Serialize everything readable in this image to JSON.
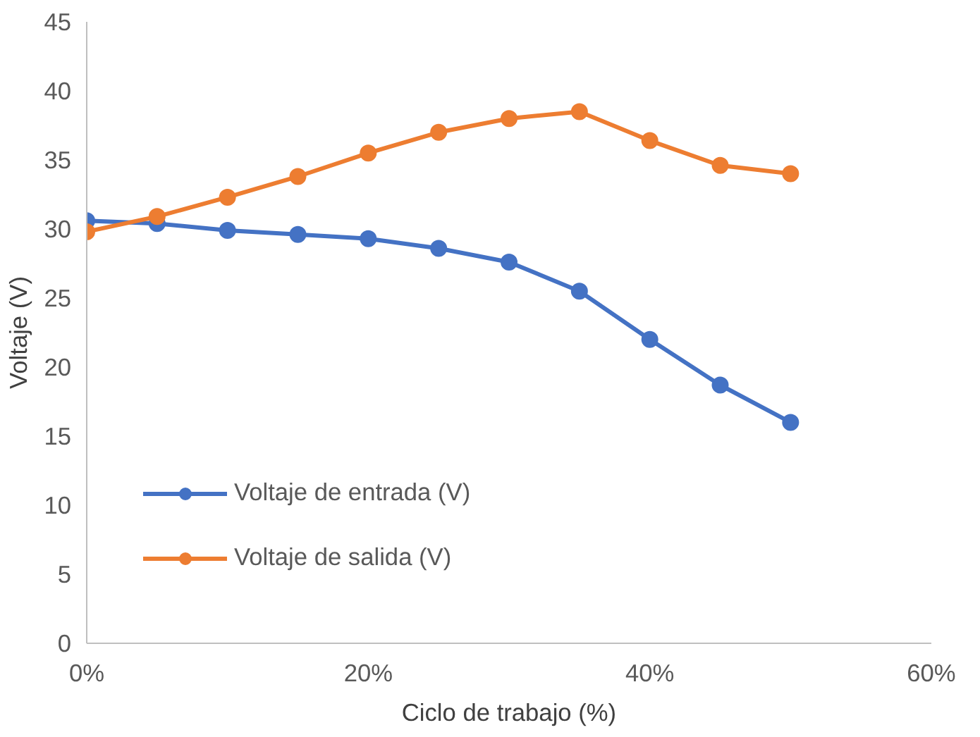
{
  "chart_data": {
    "type": "line",
    "xlabel": "Ciclo de trabajo (%)",
    "ylabel": "Voltaje (V)",
    "x": [
      0,
      5,
      10,
      15,
      20,
      25,
      30,
      35,
      40,
      45,
      50
    ],
    "series": [
      {
        "name": "Voltaje de entrada (V)",
        "color": "#4472c4",
        "values": [
          30.6,
          30.4,
          29.9,
          29.6,
          29.3,
          28.6,
          27.6,
          25.5,
          22.0,
          18.7,
          16.0
        ]
      },
      {
        "name": "Voltaje de salida (V)",
        "color": "#ed7d31",
        "values": [
          29.8,
          30.9,
          32.3,
          33.8,
          35.5,
          37.0,
          38.0,
          38.5,
          36.4,
          34.6,
          34.0
        ]
      }
    ],
    "xlim": [
      0,
      60
    ],
    "xticks": [
      {
        "value": 0,
        "label": "0%"
      },
      {
        "value": 20,
        "label": "20%"
      },
      {
        "value": 40,
        "label": "40%"
      },
      {
        "value": 60,
        "label": "60%"
      }
    ],
    "ylim": [
      0,
      45
    ],
    "yticks": [
      0,
      5,
      10,
      15,
      20,
      25,
      30,
      35,
      40,
      45
    ],
    "grid": false,
    "legend": "left",
    "marker": "circle",
    "line_style": "solid"
  }
}
